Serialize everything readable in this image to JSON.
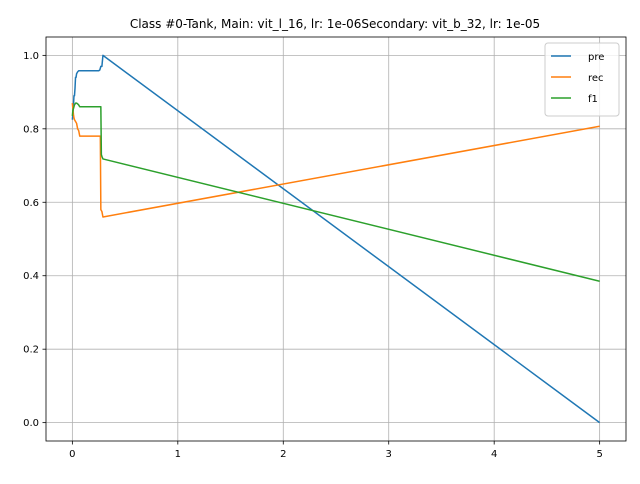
{
  "chart_data": {
    "type": "line",
    "title": "Class #0-Tank, Main: vit_l_16, lr: 1e-06Secondary: vit_b_32, lr: 1e-05",
    "xlabel": "",
    "ylabel": "",
    "xlim": [
      -0.25,
      5.25
    ],
    "ylim": [
      -0.05,
      1.05
    ],
    "xticks": [
      0,
      1,
      2,
      3,
      4,
      5
    ],
    "xtick_labels": [
      "0",
      "1",
      "2",
      "3",
      "4",
      "5"
    ],
    "yticks": [
      0.0,
      0.2,
      0.4,
      0.6,
      0.8,
      1.0
    ],
    "ytick_labels": [
      "0.0",
      "0.2",
      "0.4",
      "0.6",
      "0.8",
      "1.0"
    ],
    "grid": true,
    "legend_position": "top-right",
    "series": [
      {
        "name": "pre",
        "color": "#1f77b4",
        "x": [
          0,
          0.005,
          0.01,
          0.015,
          0.02,
          0.025,
          0.03,
          0.035,
          0.04,
          0.05,
          0.06,
          0.08,
          0.1,
          0.15,
          0.2,
          0.25,
          0.26,
          0.27,
          0.28,
          0.29,
          5
        ],
        "y": [
          0.825,
          0.84,
          0.86,
          0.89,
          0.89,
          0.91,
          0.94,
          0.94,
          0.95,
          0.955,
          0.958,
          0.958,
          0.958,
          0.958,
          0.958,
          0.958,
          0.96,
          0.97,
          0.97,
          1.0,
          0.0
        ]
      },
      {
        "name": "rec",
        "color": "#ff7f0e",
        "x": [
          0,
          0.005,
          0.01,
          0.015,
          0.02,
          0.03,
          0.04,
          0.05,
          0.06,
          0.07,
          0.1,
          0.15,
          0.2,
          0.25,
          0.265,
          0.27,
          0.28,
          0.29,
          5
        ],
        "y": [
          0.87,
          0.855,
          0.84,
          0.83,
          0.825,
          0.82,
          0.815,
          0.8,
          0.795,
          0.78,
          0.78,
          0.78,
          0.78,
          0.78,
          0.78,
          0.58,
          0.575,
          0.56,
          0.807
        ]
      },
      {
        "name": "f1",
        "color": "#2ca02c",
        "x": [
          0,
          0.005,
          0.01,
          0.015,
          0.02,
          0.03,
          0.04,
          0.05,
          0.06,
          0.07,
          0.1,
          0.15,
          0.2,
          0.25,
          0.27,
          0.275,
          0.28,
          0.29,
          5
        ],
        "y": [
          0.835,
          0.85,
          0.855,
          0.86,
          0.865,
          0.87,
          0.87,
          0.868,
          0.865,
          0.86,
          0.86,
          0.86,
          0.86,
          0.86,
          0.86,
          0.73,
          0.725,
          0.718,
          0.385
        ]
      }
    ]
  }
}
